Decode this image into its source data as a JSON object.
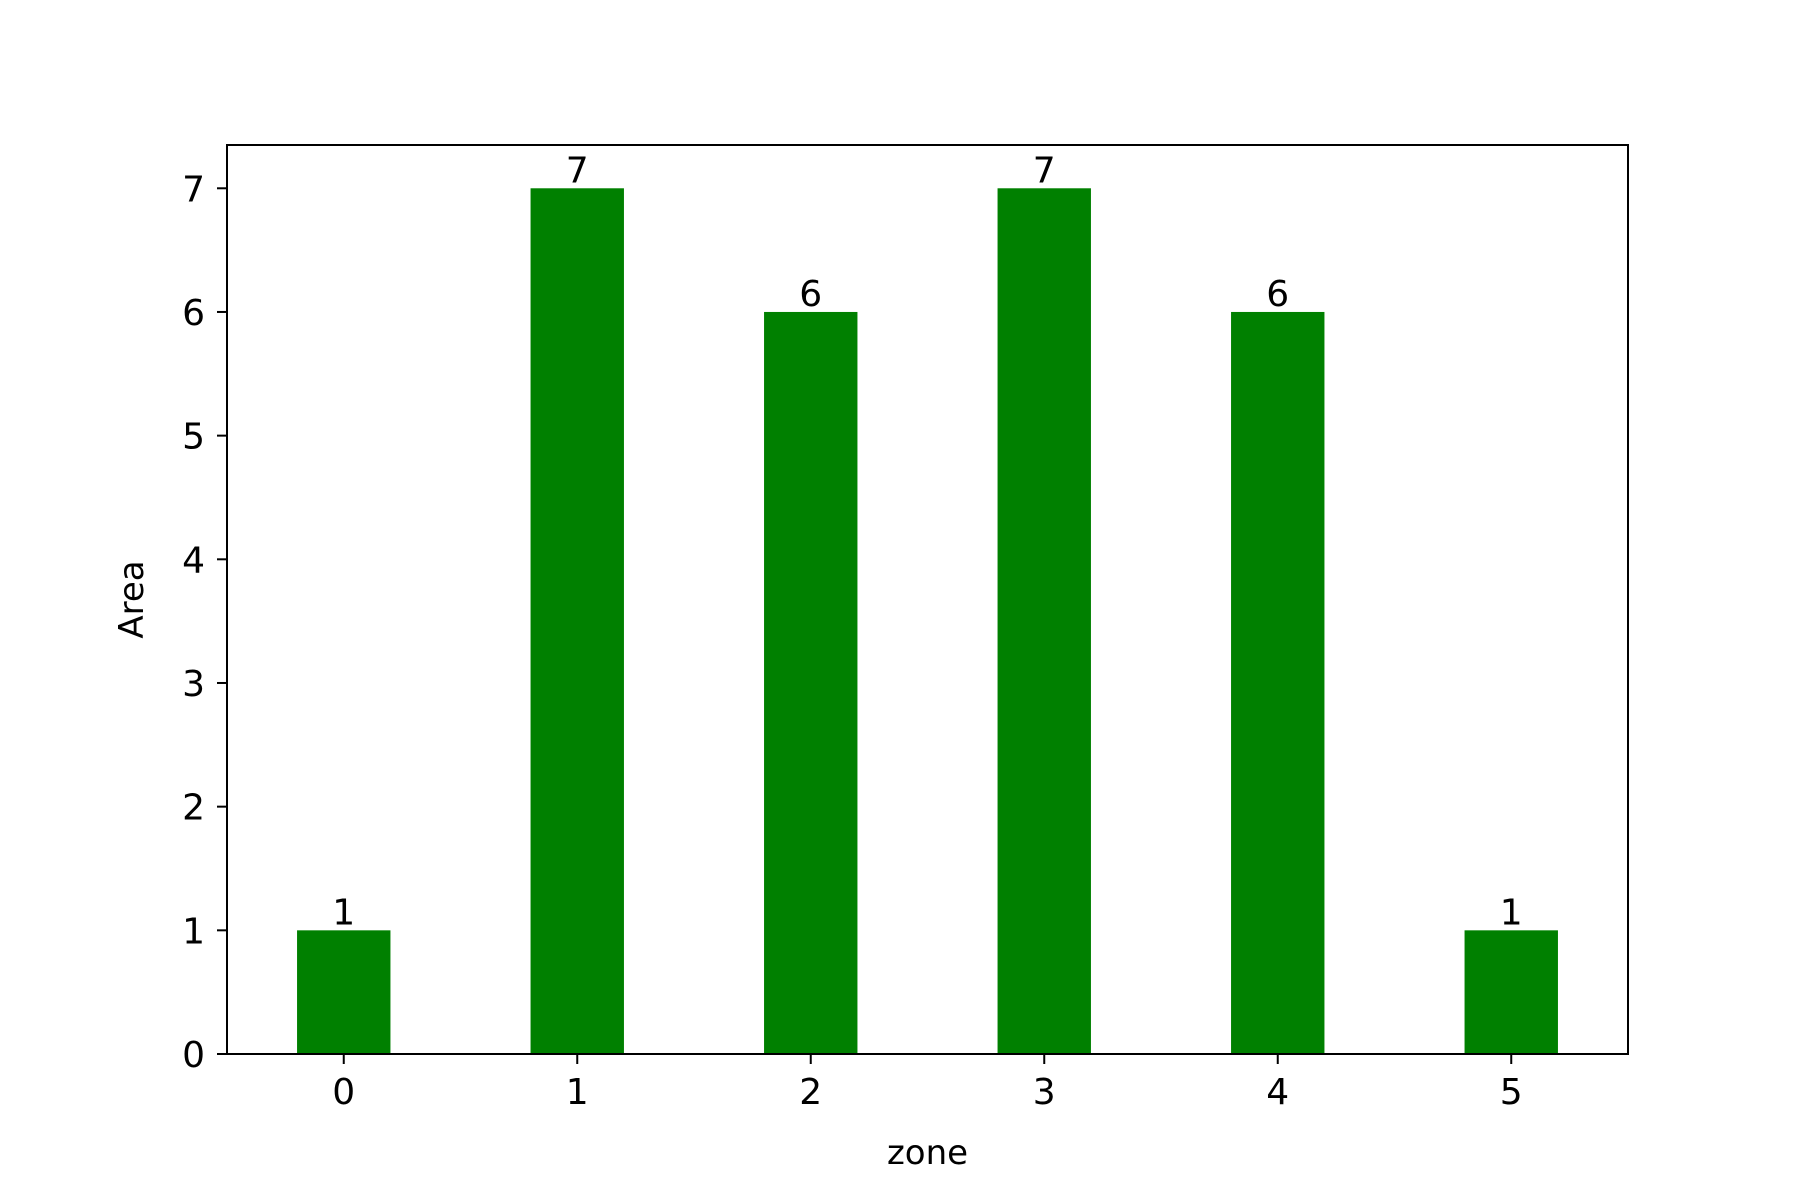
{
  "chart_data": {
    "type": "bar",
    "title": "",
    "xlabel": "zone",
    "ylabel": "Area",
    "categories": [
      "0",
      "1",
      "2",
      "3",
      "4",
      "5"
    ],
    "values": [
      1,
      7,
      6,
      7,
      6,
      1
    ],
    "data_labels": [
      "1",
      "7",
      "6",
      "7",
      "6",
      "1"
    ],
    "ylim": [
      0,
      7.35
    ],
    "yticks": [
      0,
      1,
      2,
      3,
      4,
      5,
      6,
      7
    ],
    "ytick_labels": [
      "0",
      "1",
      "2",
      "3",
      "4",
      "5",
      "6",
      "7"
    ],
    "grid": false,
    "legend": "none",
    "bar_color": "#008000"
  }
}
